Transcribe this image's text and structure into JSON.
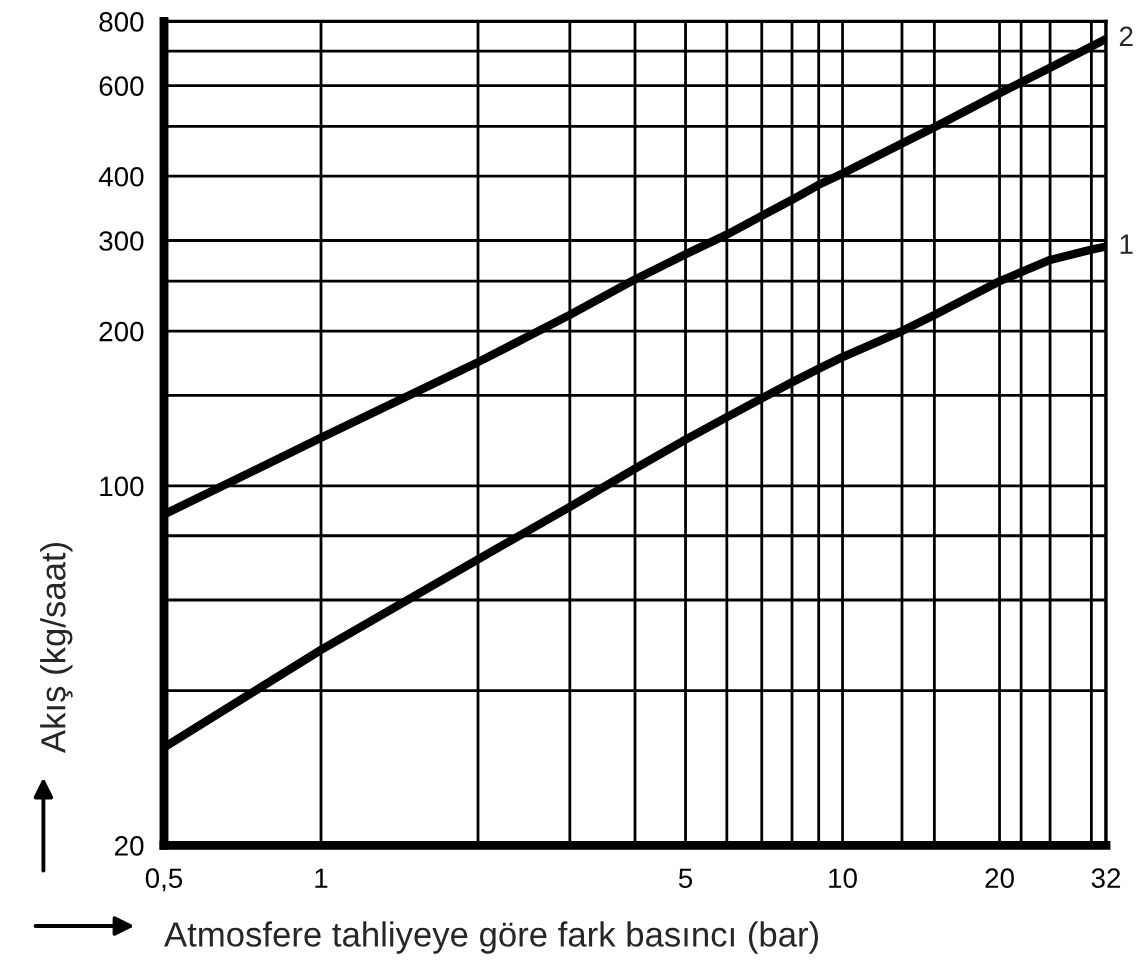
{
  "chart_data": {
    "type": "line",
    "xlabel": "Atmosfere tahliyeye göre fark basıncı (bar)",
    "ylabel": "Akış (kg/saat)",
    "log": "xy",
    "xlim": [
      0.5,
      32
    ],
    "ylim": [
      20,
      800
    ],
    "xticks": [
      {
        "value": 0.5,
        "label": "0,5"
      },
      1,
      {
        "value": 2,
        "label": null
      },
      {
        "value": 3,
        "label": null
      },
      {
        "value": 4,
        "label": null
      },
      5,
      {
        "value": 6,
        "label": null
      },
      {
        "value": 7,
        "label": null
      },
      {
        "value": 8,
        "label": null
      },
      {
        "value": 9,
        "label": null
      },
      10,
      {
        "value": 13,
        "label": null
      },
      {
        "value": 15,
        "label": null
      },
      20,
      {
        "value": 22,
        "label": null
      },
      {
        "value": 25,
        "label": null
      },
      {
        "value": 30,
        "label": null
      },
      32
    ],
    "yticks": [
      20,
      {
        "value": 40,
        "label": null
      },
      {
        "value": 60,
        "label": null
      },
      {
        "value": 80,
        "label": null
      },
      100,
      {
        "value": 150,
        "label": null
      },
      200,
      {
        "value": 250,
        "label": null
      },
      300,
      400,
      {
        "value": 500,
        "label": null
      },
      600,
      {
        "value": 700,
        "label": null
      },
      800
    ],
    "grid": true,
    "line_style": "solid",
    "series": [
      {
        "name": "2",
        "color": "#000000",
        "x": [
          0.5,
          1,
          2,
          3,
          4,
          5,
          6,
          7,
          8,
          9,
          10,
          13,
          15,
          20,
          25,
          30,
          32
        ],
        "values": [
          88,
          124,
          174,
          215,
          252,
          282,
          308,
          335,
          360,
          385,
          405,
          463,
          498,
          580,
          650,
          715,
          740
        ]
      },
      {
        "name": "1",
        "color": "#000000",
        "x": [
          0.5,
          1,
          2,
          3,
          4,
          5,
          6,
          7,
          8,
          9,
          10,
          13,
          15,
          20,
          25,
          30,
          32
        ],
        "values": [
          31,
          48,
          72,
          91,
          108,
          123,
          136,
          148,
          159,
          169,
          178,
          200,
          215,
          250,
          275,
          288,
          292
        ]
      }
    ]
  }
}
